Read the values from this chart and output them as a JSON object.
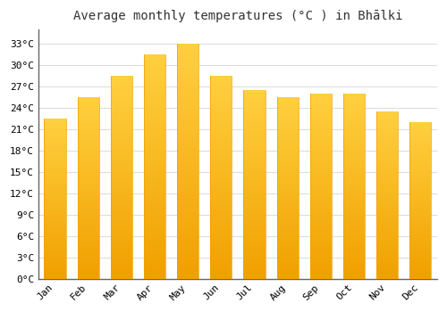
{
  "title": "Average monthly temperatures (°C ) in Bhālki",
  "months": [
    "Jan",
    "Feb",
    "Mar",
    "Apr",
    "May",
    "Jun",
    "Jul",
    "Aug",
    "Sep",
    "Oct",
    "Nov",
    "Dec"
  ],
  "temperatures": [
    22.5,
    25.5,
    28.5,
    31.5,
    33.0,
    28.5,
    26.5,
    25.5,
    26.0,
    26.0,
    23.5,
    22.0
  ],
  "bar_color": "#FFBB00",
  "bar_edge_color": "#E89000",
  "background_color": "#FFFFFF",
  "plot_bg_color": "#FFFFFF",
  "grid_color": "#DDDDDD",
  "yticks": [
    0,
    3,
    6,
    9,
    12,
    15,
    18,
    21,
    24,
    27,
    30,
    33
  ],
  "ylim": [
    0,
    35
  ],
  "title_fontsize": 10,
  "tick_fontsize": 8
}
